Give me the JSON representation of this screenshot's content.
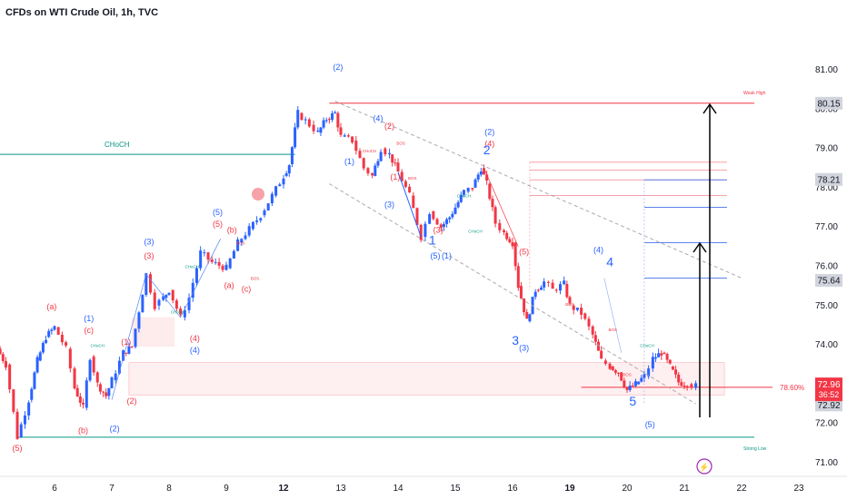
{
  "header": {
    "title": "CFDs on WTI Crude Oil, 1h, TVC"
  },
  "colors": {
    "up": "#2962ff",
    "down": "#f23645",
    "choch": "#089981",
    "wave_red": "#f23645",
    "wave_blue": "#2962ff",
    "zone": "rgba(242,54,69,0.08)"
  },
  "chart_data": {
    "type": "candlestick",
    "title": "CFDs on WTI Crude Oil, 1h, TVC",
    "x_ticks": [
      {
        "label": "6",
        "day": 0
      },
      {
        "label": "7",
        "day": 1
      },
      {
        "label": "8",
        "day": 2
      },
      {
        "label": "9",
        "day": 3
      },
      {
        "label": "12",
        "day": 4
      },
      {
        "label": "13",
        "day": 5
      },
      {
        "label": "14",
        "day": 6
      },
      {
        "label": "15",
        "day": 7
      },
      {
        "label": "16",
        "day": 8
      },
      {
        "label": "19",
        "day": 9
      },
      {
        "label": "20",
        "day": 10
      },
      {
        "label": "21",
        "day": 11
      },
      {
        "label": "22",
        "day": 12
      },
      {
        "label": "23",
        "day": 13
      }
    ],
    "bold_ticks": [
      "12",
      "19"
    ],
    "y_ticks": [
      71.0,
      72.0,
      73.0,
      74.0,
      75.0,
      76.0,
      77.0,
      78.0,
      79.0,
      80.0,
      81.0
    ],
    "ylim": [
      70.6,
      81.5
    ],
    "xlim": [
      -1.0,
      13.5
    ],
    "price_path": [
      [
        -1.0,
        73.9
      ],
      [
        -0.85,
        73.5
      ],
      [
        -0.65,
        71.65
      ],
      [
        -0.45,
        72.6
      ],
      [
        -0.3,
        73.6
      ],
      [
        -0.15,
        74.2
      ],
      [
        0.0,
        74.45
      ],
      [
        0.2,
        73.9
      ],
      [
        0.35,
        72.9
      ],
      [
        0.5,
        72.4
      ],
      [
        0.62,
        73.7
      ],
      [
        0.75,
        73.0
      ],
      [
        0.9,
        72.7
      ],
      [
        1.0,
        73.1
      ],
      [
        1.2,
        73.8
      ],
      [
        1.35,
        73.95
      ],
      [
        1.6,
        75.8
      ],
      [
        1.75,
        75.0
      ],
      [
        1.9,
        75.2
      ],
      [
        2.0,
        75.4
      ],
      [
        2.2,
        74.7
      ],
      [
        2.35,
        75.2
      ],
      [
        2.55,
        76.35
      ],
      [
        2.75,
        76.1
      ],
      [
        3.0,
        75.95
      ],
      [
        3.2,
        76.6
      ],
      [
        3.4,
        76.95
      ],
      [
        3.6,
        77.3
      ],
      [
        3.8,
        77.8
      ],
      [
        4.0,
        78.3
      ],
      [
        4.1,
        78.6
      ],
      [
        4.25,
        79.9
      ],
      [
        4.45,
        79.6
      ],
      [
        4.6,
        79.4
      ],
      [
        4.75,
        79.75
      ],
      [
        4.9,
        79.9
      ],
      [
        5.0,
        79.3
      ],
      [
        5.2,
        79.2
      ],
      [
        5.4,
        78.5
      ],
      [
        5.55,
        78.3
      ],
      [
        5.7,
        79.0
      ],
      [
        5.85,
        78.85
      ],
      [
        6.0,
        78.4
      ],
      [
        6.2,
        77.8
      ],
      [
        6.4,
        76.75
      ],
      [
        6.55,
        77.4
      ],
      [
        6.75,
        77.0
      ],
      [
        6.9,
        77.25
      ],
      [
        7.0,
        77.5
      ],
      [
        7.15,
        77.9
      ],
      [
        7.3,
        78.0
      ],
      [
        7.45,
        78.5
      ],
      [
        7.55,
        78.1
      ],
      [
        7.7,
        77.1
      ],
      [
        7.85,
        76.85
      ],
      [
        8.0,
        76.6
      ],
      [
        8.1,
        75.5
      ],
      [
        8.25,
        74.6
      ],
      [
        8.4,
        75.4
      ],
      [
        8.55,
        75.6
      ],
      [
        8.7,
        75.4
      ],
      [
        8.9,
        75.55
      ],
      [
        9.0,
        75.0
      ],
      [
        9.2,
        74.8
      ],
      [
        9.4,
        74.25
      ],
      [
        9.55,
        73.6
      ],
      [
        9.7,
        73.45
      ],
      [
        9.85,
        73.3
      ],
      [
        10.0,
        72.85
      ],
      [
        10.15,
        73.0
      ],
      [
        10.3,
        73.2
      ],
      [
        10.45,
        73.65
      ],
      [
        10.6,
        73.8
      ],
      [
        10.75,
        73.45
      ],
      [
        10.9,
        73.05
      ],
      [
        11.05,
        73.0
      ],
      [
        11.2,
        72.95
      ]
    ],
    "last_price": "72.96",
    "countdown": "36:52",
    "price_badges": [
      "80.15",
      "78.21",
      "75.64"
    ],
    "partial_badge": "72.92",
    "levels": [
      {
        "name": "Weak High",
        "price": 80.15,
        "color": "#f23645"
      },
      {
        "name": "Strong Low",
        "price": 71.65,
        "color": "#089981"
      },
      {
        "name": "CHoCH",
        "price": 78.85,
        "color": "#089981"
      }
    ],
    "fib_label": "78.60%",
    "fib_price": 72.92,
    "annotations": [
      {
        "text": "(a)",
        "color": "red",
        "day": -0.05,
        "price": 74.9
      },
      {
        "text": "(b)",
        "color": "red",
        "day": 0.5,
        "price": 71.75
      },
      {
        "text": "(5)",
        "color": "red",
        "day": -0.65,
        "price": 71.3
      },
      {
        "text": "(1)",
        "color": "blue",
        "day": 0.6,
        "price": 74.6
      },
      {
        "text": "(c)",
        "color": "red",
        "day": 0.6,
        "price": 74.3
      },
      {
        "text": "(1)",
        "color": "red",
        "day": 1.25,
        "price": 74.0
      },
      {
        "text": "(2)",
        "color": "red",
        "day": 1.35,
        "price": 72.5
      },
      {
        "text": "(2)",
        "color": "blue",
        "day": 1.05,
        "price": 71.8
      },
      {
        "text": "(3)",
        "color": "blue",
        "day": 1.65,
        "price": 76.55
      },
      {
        "text": "(3)",
        "color": "red",
        "day": 1.65,
        "price": 76.2
      },
      {
        "text": "(4)",
        "color": "red",
        "day": 2.45,
        "price": 74.1
      },
      {
        "text": "(4)",
        "color": "blue",
        "day": 2.45,
        "price": 73.8
      },
      {
        "text": "(5)",
        "color": "blue",
        "day": 2.85,
        "price": 77.3
      },
      {
        "text": "(5)",
        "color": "red",
        "day": 2.85,
        "price": 77.0
      },
      {
        "text": "(b)",
        "color": "red",
        "day": 3.1,
        "price": 76.85
      },
      {
        "text": "(a)",
        "color": "red",
        "day": 3.05,
        "price": 75.45
      },
      {
        "text": "(c)",
        "color": "red",
        "day": 3.35,
        "price": 75.35
      },
      {
        "text": "(2)",
        "color": "blue",
        "day": 4.95,
        "price": 81.0
      },
      {
        "text": "(4)",
        "color": "blue",
        "day": 5.65,
        "price": 79.7
      },
      {
        "text": "(2)",
        "color": "red",
        "day": 5.85,
        "price": 79.5
      },
      {
        "text": "(1)",
        "color": "blue",
        "day": 5.15,
        "price": 78.6
      },
      {
        "text": "(1)",
        "color": "red",
        "day": 5.95,
        "price": 78.2
      },
      {
        "text": "(3)",
        "color": "blue",
        "day": 5.85,
        "price": 77.5
      },
      {
        "text": "1",
        "color": "blue",
        "day": 6.6,
        "price": 76.55
      },
      {
        "text": "(5)",
        "color": "blue",
        "day": 6.65,
        "price": 76.2
      },
      {
        "text": "(1)",
        "color": "blue",
        "day": 6.85,
        "price": 76.2
      },
      {
        "text": "(3)",
        "color": "red",
        "day": 6.7,
        "price": 76.85
      },
      {
        "text": "(2)",
        "color": "blue",
        "day": 7.6,
        "price": 79.35
      },
      {
        "text": "(4)",
        "color": "red",
        "day": 7.6,
        "price": 79.05
      },
      {
        "text": "2",
        "color": "blue",
        "day": 7.55,
        "price": 78.85
      },
      {
        "text": "(5)",
        "color": "red",
        "day": 8.2,
        "price": 76.3
      },
      {
        "text": "3",
        "color": "blue",
        "day": 8.05,
        "price": 74.0
      },
      {
        "text": "(3)",
        "color": "blue",
        "day": 8.2,
        "price": 73.85
      },
      {
        "text": "(4)",
        "color": "blue",
        "day": 9.5,
        "price": 76.35
      },
      {
        "text": "4",
        "color": "blue",
        "day": 9.7,
        "price": 76.0
      },
      {
        "text": "5",
        "color": "blue",
        "day": 10.1,
        "price": 72.45
      },
      {
        "text": "(5)",
        "color": "blue",
        "day": 10.4,
        "price": 71.9
      }
    ],
    "small_labels": [
      {
        "text": "CHoCH",
        "day": 0.75,
        "price": 73.95
      },
      {
        "text": "CHoCH",
        "day": 2.4,
        "price": 75.95
      },
      {
        "text": "CHoCH",
        "day": 2.15,
        "price": 74.8
      },
      {
        "text": "BOS",
        "day": 3.25,
        "price": 76.55
      },
      {
        "text": "BOS",
        "day": 3.5,
        "price": 75.65
      },
      {
        "text": "CHoCH",
        "day": 5.5,
        "price": 78.9
      },
      {
        "text": "BOS",
        "day": 6.05,
        "price": 79.1
      },
      {
        "text": "BOS",
        "day": 6.25,
        "price": 78.2
      },
      {
        "text": "CHoCH",
        "day": 7.15,
        "price": 77.75
      },
      {
        "text": "CHoCH",
        "day": 7.35,
        "price": 76.85
      },
      {
        "text": "BOS",
        "day": 9.0,
        "price": 75.0
      },
      {
        "text": "BOS",
        "day": 9.75,
        "price": 74.35
      },
      {
        "text": "CHoCH",
        "day": 10.35,
        "price": 73.95
      },
      {
        "text": "BOS",
        "day": 10.0,
        "price": 73.2
      }
    ]
  }
}
